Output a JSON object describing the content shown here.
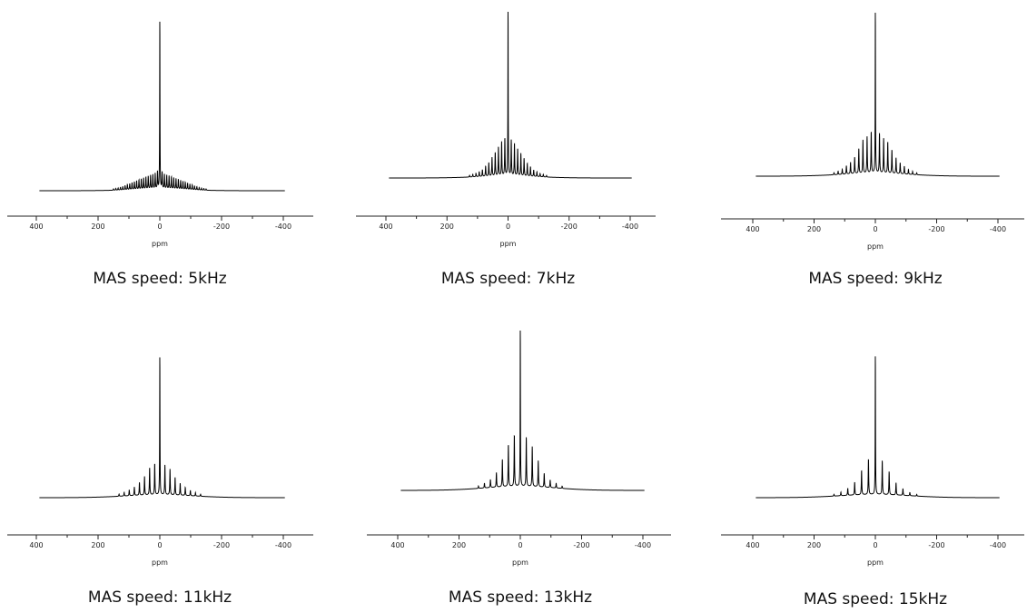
{
  "chart_data": [
    {
      "type": "line",
      "caption": "MAS speed: 5kHz",
      "xlabel": "ppm",
      "x_reversed": true,
      "xlim": [
        400,
        -400
      ],
      "x_ticks": [
        400,
        200,
        0,
        -200,
        -400
      ],
      "x_tick_labels": [
        "400",
        "200",
        "0",
        "-200",
        "-400"
      ],
      "spin_khz": 5,
      "curve_x_range": [
        390,
        -405
      ],
      "isotropic_ppm": 0,
      "main_peak_height": 1.0,
      "sideband_spacing_ppm": 7.5,
      "sideband_count": 20,
      "sideband_amplitudes": [
        0.1,
        0.09,
        0.085,
        0.08,
        0.075,
        0.07,
        0.065,
        0.06,
        0.055,
        0.05,
        0.045,
        0.04,
        0.035,
        0.03,
        0.025,
        0.02,
        0.015,
        0.012,
        0.01,
        0.008
      ],
      "broad_hump_amplitude": 0.008,
      "broad_hump_width_ppm": 200
    },
    {
      "type": "line",
      "caption": "MAS speed: 7kHz",
      "xlabel": "ppm",
      "x_reversed": true,
      "xlim": [
        400,
        -400
      ],
      "x_ticks": [
        400,
        200,
        0,
        -200,
        -400
      ],
      "x_tick_labels": [
        "400",
        "200",
        "0",
        "-200",
        "-400"
      ],
      "spin_khz": 7,
      "curve_x_range": [
        390,
        -405
      ],
      "isotropic_ppm": 0,
      "main_peak_height": 1.0,
      "sideband_spacing_ppm": 10.5,
      "sideband_count": 12,
      "sideband_amplitudes": [
        0.22,
        0.2,
        0.17,
        0.14,
        0.11,
        0.08,
        0.06,
        0.04,
        0.03,
        0.02,
        0.015,
        0.01
      ],
      "broad_hump_amplitude": 0.012,
      "broad_hump_width_ppm": 200
    },
    {
      "type": "line",
      "caption": "MAS speed: 9kHz",
      "xlabel": "ppm",
      "x_reversed": true,
      "xlim": [
        400,
        -400
      ],
      "x_ticks": [
        400,
        200,
        0,
        -200,
        -400
      ],
      "x_tick_labels": [
        "400",
        "200",
        "0",
        "-200",
        "-400"
      ],
      "spin_khz": 9,
      "curve_x_range": [
        390,
        -405
      ],
      "isotropic_ppm": 0,
      "main_peak_height": 1.0,
      "sideband_spacing_ppm": 13.5,
      "sideband_count": 10,
      "sideband_amplitudes": [
        0.25,
        0.22,
        0.2,
        0.15,
        0.1,
        0.07,
        0.05,
        0.03,
        0.02,
        0.012
      ],
      "broad_hump_amplitude": 0.018,
      "broad_hump_width_ppm": 220
    },
    {
      "type": "line",
      "caption": "MAS speed: 11kHz",
      "xlabel": "ppm",
      "x_reversed": true,
      "xlim": [
        400,
        -400
      ],
      "x_ticks": [
        400,
        200,
        0,
        -200,
        -400
      ],
      "x_tick_labels": [
        "400",
        "200",
        "0",
        "-200",
        "-400"
      ],
      "spin_khz": 11,
      "curve_x_range": [
        390,
        -405
      ],
      "isotropic_ppm": 0,
      "main_peak_height": 1.0,
      "sideband_spacing_ppm": 16.5,
      "sideband_count": 8,
      "sideband_amplitudes": [
        0.22,
        0.19,
        0.13,
        0.09,
        0.06,
        0.04,
        0.025,
        0.015
      ],
      "broad_hump_amplitude": 0.02,
      "broad_hump_width_ppm": 220
    },
    {
      "type": "line",
      "caption": "MAS speed: 13kHz",
      "xlabel": "ppm",
      "x_reversed": true,
      "xlim": [
        400,
        -400
      ],
      "x_ticks": [
        400,
        200,
        0,
        -200,
        -400
      ],
      "x_tick_labels": [
        "400",
        "200",
        "0",
        "-200",
        "-400"
      ],
      "spin_khz": 13,
      "curve_x_range": [
        390,
        -405
      ],
      "isotropic_ppm": 0,
      "main_peak_height": 1.0,
      "sideband_spacing_ppm": 19.5,
      "sideband_count": 7,
      "sideband_amplitudes": [
        0.32,
        0.26,
        0.17,
        0.09,
        0.05,
        0.03,
        0.015
      ],
      "broad_hump_amplitude": 0.025,
      "broad_hump_width_ppm": 230
    },
    {
      "type": "line",
      "caption": "MAS speed: 15kHz",
      "xlabel": "ppm",
      "x_reversed": true,
      "xlim": [
        400,
        -400
      ],
      "x_ticks": [
        400,
        200,
        0,
        -200,
        -400
      ],
      "x_tick_labels": [
        "400",
        "200",
        "0",
        "-200",
        "-400"
      ],
      "spin_khz": 15,
      "curve_x_range": [
        390,
        -405
      ],
      "isotropic_ppm": 0,
      "main_peak_height": 1.0,
      "sideband_spacing_ppm": 22.5,
      "sideband_count": 6,
      "sideband_amplitudes": [
        0.25,
        0.17,
        0.09,
        0.05,
        0.025,
        0.012
      ],
      "broad_hump_amplitude": 0.022,
      "broad_hump_width_ppm": 230
    }
  ],
  "colors": {
    "trace": "#000000",
    "axis": "#222222",
    "background": "#ffffff"
  }
}
